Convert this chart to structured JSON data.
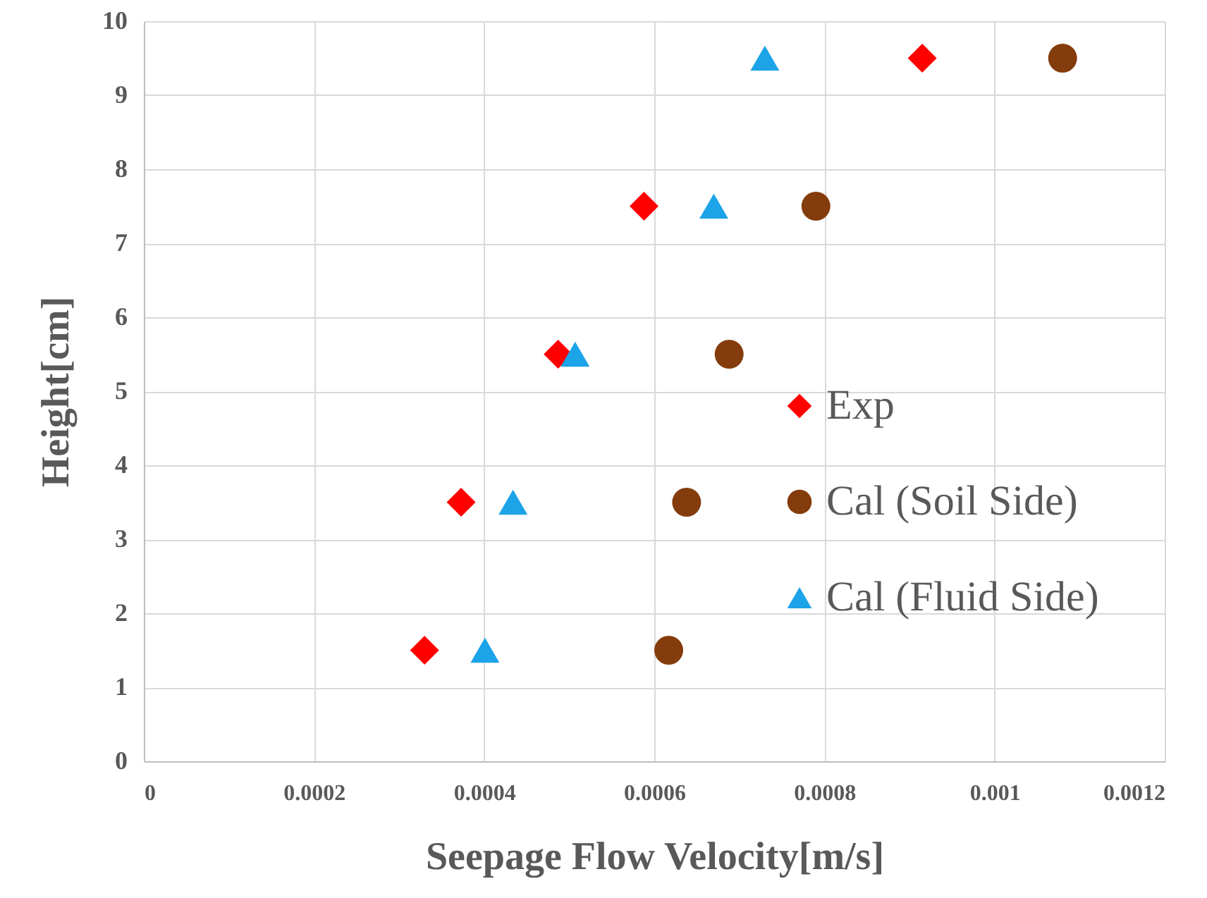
{
  "chart_data": {
    "type": "scatter",
    "xlabel": "Seepage Flow Velocity[m/s]",
    "ylabel": "Height[cm]",
    "xlim": [
      0,
      0.0012
    ],
    "xticks": [
      0,
      0.0002,
      0.0004,
      0.0006,
      0.0008,
      0.001,
      0.0012
    ],
    "ylim": [
      0,
      10
    ],
    "yticks": [
      0,
      1,
      2,
      3,
      4,
      5,
      6,
      7,
      8,
      9,
      10
    ],
    "grid": true,
    "legend": "right",
    "series": [
      {
        "name": "Exp",
        "color": "#ff0000",
        "marker": "diamond",
        "x": [
          0.00033,
          0.000373,
          0.000487,
          0.000588,
          0.000915
        ],
        "values": [
          1.5,
          3.5,
          5.5,
          7.5,
          9.5
        ]
      },
      {
        "name": "Cal (Soil Side)",
        "color": "#843c0c",
        "marker": "circle",
        "x": [
          0.000617,
          0.000638,
          0.000688,
          0.00079,
          0.00108
        ],
        "values": [
          1.5,
          3.5,
          5.5,
          7.5,
          9.5
        ]
      },
      {
        "name": "Cal (Fluid Side)",
        "color": "#1ca3e8",
        "marker": "triangle",
        "x": [
          0.000401,
          0.000434,
          0.000507,
          0.00067,
          0.00073
        ],
        "values": [
          1.5,
          3.5,
          5.5,
          7.5,
          9.5
        ]
      }
    ]
  }
}
